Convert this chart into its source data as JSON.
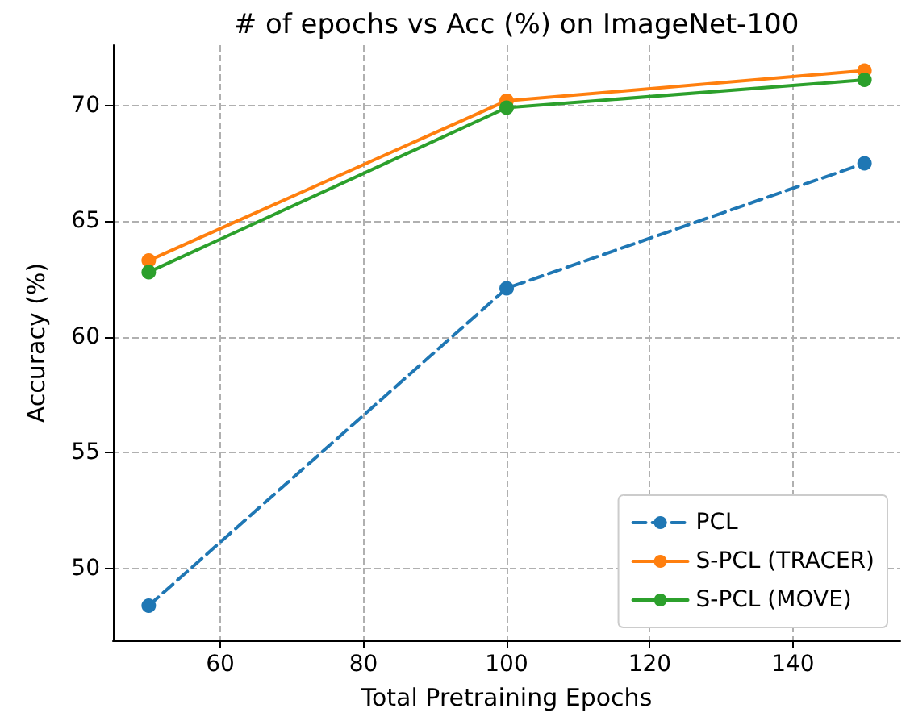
{
  "chart_data": {
    "type": "line",
    "title": "# of epochs vs Acc (%) on ImageNet-100",
    "xlabel": "Total Pretraining Epochs",
    "ylabel": "Accuracy (%)",
    "x": [
      50,
      100,
      150
    ],
    "series": [
      {
        "name": "PCL",
        "color": "#1f77b4",
        "values": [
          48.4,
          62.1,
          67.5
        ],
        "line_style": "dashed"
      },
      {
        "name": "S-PCL (TRACER)",
        "color": "#ff7f0e",
        "values": [
          63.3,
          70.2,
          71.5
        ],
        "line_style": "solid"
      },
      {
        "name": "S-PCL (MOVE)",
        "color": "#2ca02c",
        "values": [
          62.8,
          69.9,
          71.1
        ],
        "line_style": "solid"
      }
    ],
    "xlim": [
      45,
      155
    ],
    "xticks": [
      60,
      80,
      100,
      120,
      140
    ],
    "ylim": [
      46.9,
      72.6
    ],
    "yticks": [
      50,
      55,
      60,
      65,
      70
    ],
    "grid": true,
    "legend": "bottom right",
    "marker": "circle"
  }
}
